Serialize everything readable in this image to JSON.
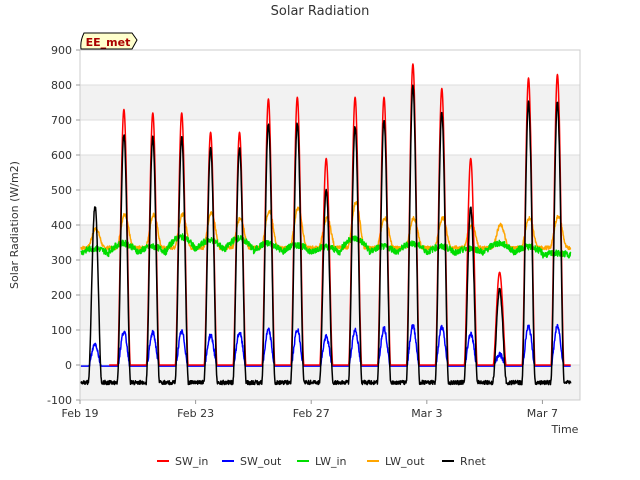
{
  "chart_data": {
    "type": "line",
    "title": "Solar Radiation",
    "xlabel": "Time",
    "ylabel": "Solar Radiation (W/m2)",
    "station_label": "EE_met",
    "ylim": [
      -100,
      900
    ],
    "yticks": [
      -100,
      0,
      100,
      200,
      300,
      400,
      500,
      600,
      700,
      800,
      900
    ],
    "xlim_days": [
      0,
      17.3
    ],
    "xticks": [
      {
        "day": 0,
        "label": "Feb 19"
      },
      {
        "day": 4,
        "label": "Feb 23"
      },
      {
        "day": 8,
        "label": "Feb 27"
      },
      {
        "day": 12,
        "label": "Mar 3"
      },
      {
        "day": 16,
        "label": "Mar 7"
      }
    ],
    "grid": true,
    "legend_position": "bottom",
    "start_date": "Feb 19",
    "day_peaks": {
      "sw_in": [
        null,
        730,
        720,
        720,
        665,
        665,
        760,
        765,
        590,
        765,
        765,
        860,
        790,
        590,
        265,
        820,
        830
      ],
      "sw_out": [
        60,
        95,
        92,
        95,
        85,
        92,
        100,
        100,
        80,
        100,
        105,
        112,
        108,
        90,
        30,
        110,
        110
      ],
      "lw_in": [
        335,
        350,
        340,
        370,
        360,
        365,
        350,
        345,
        340,
        365,
        340,
        350,
        340,
        335,
        350,
        340,
        320
      ],
      "lw_out": [
        390,
        430,
        430,
        430,
        435,
        420,
        440,
        450,
        420,
        465,
        420,
        420,
        420,
        400,
        400,
        420,
        425
      ],
      "rnet": [
        455,
        660,
        650,
        650,
        620,
        620,
        690,
        690,
        500,
        680,
        700,
        800,
        720,
        450,
        215,
        750,
        750
      ]
    },
    "night_levels": {
      "sw_in": 0,
      "sw_out": -3,
      "lw_in": 310,
      "lw_out": 335,
      "rnet": -40
    },
    "series": [
      {
        "name": "SW_in",
        "key": "sw_in",
        "color": "#ff0000"
      },
      {
        "name": "SW_out",
        "key": "sw_out",
        "color": "#0000ff"
      },
      {
        "name": "LW_in",
        "key": "lw_in",
        "color": "#00dd00"
      },
      {
        "name": "LW_out",
        "key": "lw_out",
        "color": "#ffa500"
      },
      {
        "name": "Rnet",
        "key": "rnet",
        "color": "#000000"
      }
    ]
  }
}
